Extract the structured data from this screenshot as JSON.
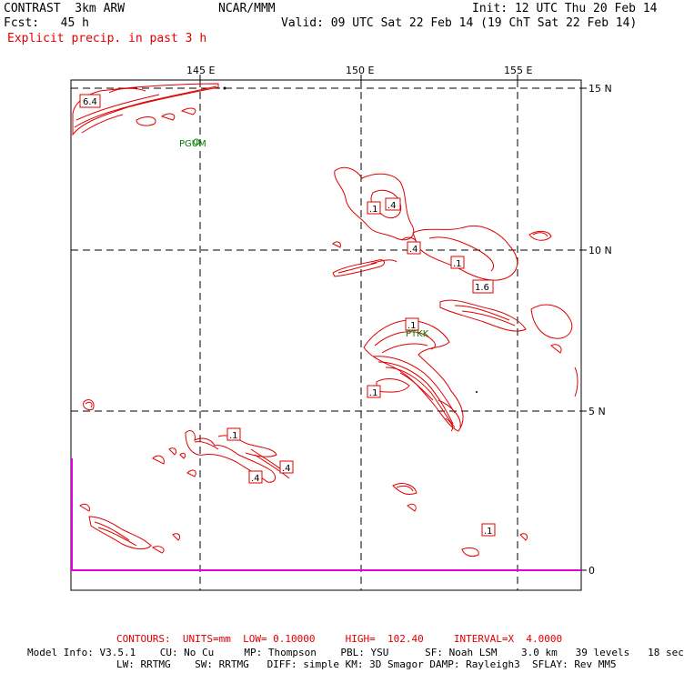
{
  "header": {
    "model_name": "CONTRAST  3km ARW",
    "org": "NCAR/MMM",
    "init": "Init: 12 UTC Thu 20 Feb 14",
    "fcst": "Fcst:   45 h",
    "valid": "Valid: 09 UTC Sat 22 Feb 14 (19 ChT Sat 22 Feb 14)",
    "field_title": "Explicit precip. in past 3 h"
  },
  "axes": {
    "lon_labels": [
      "145 E",
      "150 E",
      "155 E"
    ],
    "lat_labels": [
      "15 N",
      "10 N",
      "5 N",
      "0"
    ]
  },
  "stations": [
    "PGUM",
    "PTKK"
  ],
  "contour_labels": [
    "6.4",
    ".1",
    ".4",
    ".4",
    ".1",
    "1.6",
    ".1",
    ".1",
    ".1",
    ".4",
    ".4",
    ".1"
  ],
  "footer": {
    "contours": "CONTOURS:  UNITS=mm  LOW= 0.10000     HIGH=  102.40     INTERVAL=X  4.0000",
    "model_info_1": "Model Info: V3.5.1    CU: No Cu     MP: Thompson    PBL: YSU      SF: Noah LSM    3.0 km   39 levels   18 sec",
    "model_info_2": "LW: RRTMG    SW: RRTMG   DIFF: simple KM: 3D Smagor DAMP: Rayleigh3  SFLAY: Rev MM5"
  },
  "colors": {
    "contour": "#e00000",
    "station": "#008000",
    "grid": "#000000",
    "magenta": "#e000e0"
  }
}
